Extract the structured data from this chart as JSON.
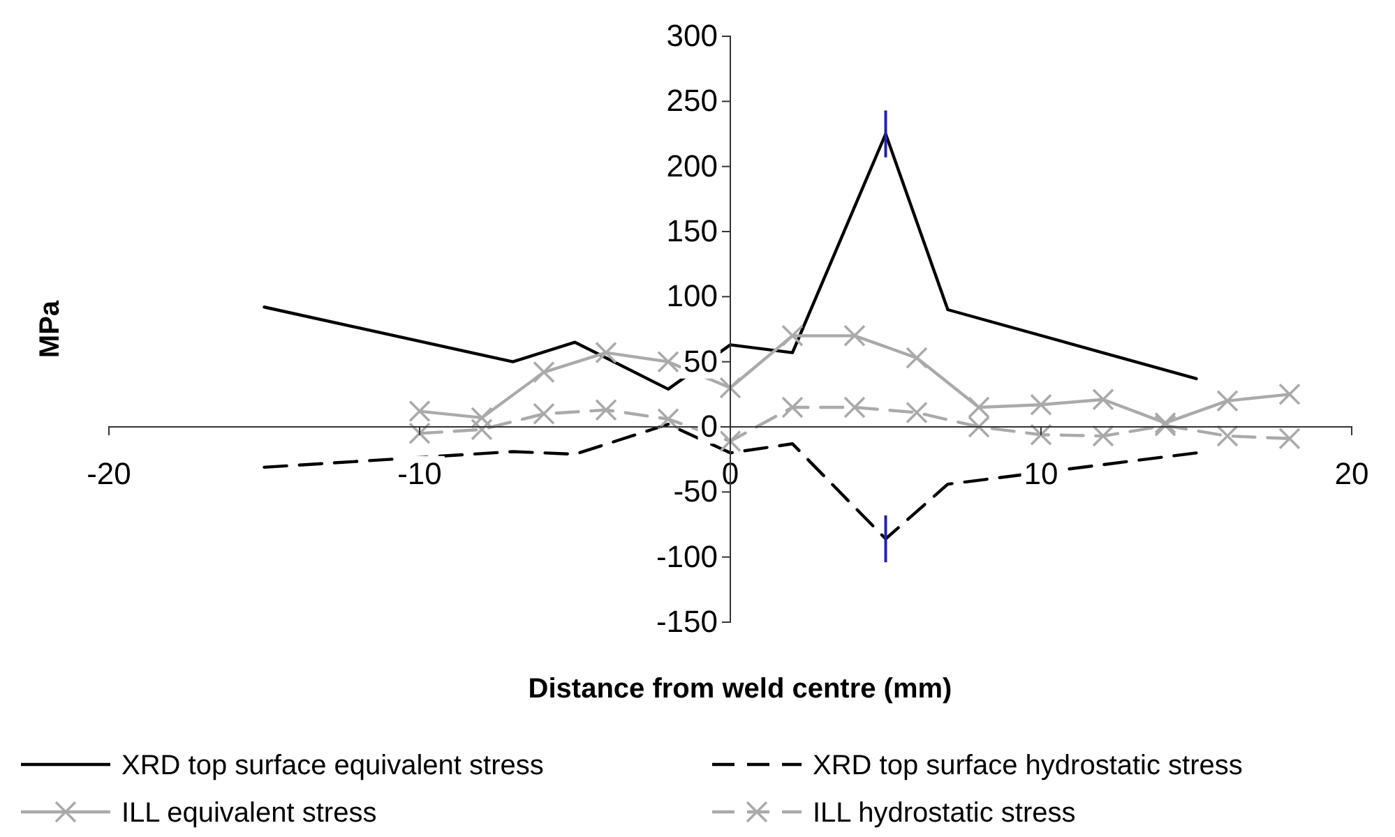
{
  "chart_data": {
    "type": "line",
    "xlabel": "Distance from weld centre (mm)",
    "ylabel": "MPa",
    "xlim": [
      -20,
      20
    ],
    "xticks": [
      -20,
      -10,
      0,
      10,
      20
    ],
    "ylim": [
      -150,
      300
    ],
    "yticks": [
      -150,
      -100,
      -50,
      0,
      50,
      100,
      150,
      200,
      250,
      300
    ],
    "grid": false,
    "legend": "bottom",
    "series": [
      {
        "name": "XRD top surface equivalent stress",
        "color": "#000000",
        "line_style": "solid",
        "marker": "none",
        "x": [
          -15,
          -7,
          -5,
          -2,
          0,
          2,
          5,
          7,
          15
        ],
        "values": [
          92,
          50,
          65,
          29,
          63,
          57,
          225,
          90,
          37
        ],
        "errors": [
          null,
          null,
          null,
          null,
          null,
          null,
          18,
          null,
          null
        ]
      },
      {
        "name": "XRD top surface hydrostatic stress",
        "color": "#000000",
        "line_style": "dashed",
        "marker": "none",
        "x": [
          -15,
          -7,
          -5,
          -2,
          0,
          2,
          5,
          7,
          15
        ],
        "values": [
          -31,
          -19,
          -21,
          2,
          -20,
          -13,
          -86,
          -44,
          -20
        ],
        "errors": [
          null,
          null,
          null,
          null,
          null,
          null,
          18,
          null,
          null
        ]
      },
      {
        "name": "ILL equivalent stress",
        "color": "#aaaaaa",
        "line_style": "solid",
        "marker": "cross",
        "x": [
          -10,
          -8,
          -6,
          -4,
          -2,
          0,
          2,
          4,
          6,
          8,
          10,
          12,
          14,
          16,
          18
        ],
        "values": [
          12,
          7,
          42,
          57,
          50,
          30,
          70,
          70,
          53,
          15,
          17,
          21,
          3,
          20,
          25
        ]
      },
      {
        "name": "ILL hydrostatic stress",
        "color": "#aaaaaa",
        "line_style": "dashed",
        "marker": "cross",
        "x": [
          -10,
          -8,
          -6,
          -4,
          -2,
          0,
          2,
          4,
          6,
          8,
          10,
          12,
          14,
          16,
          18
        ],
        "values": [
          -5,
          -2,
          10,
          13,
          6,
          -11,
          15,
          15,
          11,
          0,
          -6,
          -7,
          1,
          -7,
          -9
        ]
      }
    ]
  }
}
